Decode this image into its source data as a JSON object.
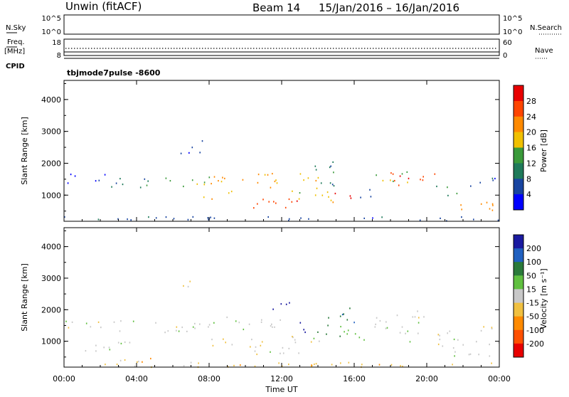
{
  "header": {
    "station": "Unwin (fitACF)",
    "beam": "Beam 14",
    "dates": "15/Jan/2016 – 16/Jan/2016"
  },
  "top_panels": {
    "nsky_label": "N.Sky",
    "nsky_ticks": [
      "10^5",
      "10^0"
    ],
    "nsky_right_ticks": [
      "10^5",
      "10^0"
    ],
    "nsearch_label": "N.Search",
    "freq_label_line1": "Freq.",
    "freq_label_line2": "[MHz]",
    "freq_ticks": [
      "18",
      "8"
    ],
    "nave_ticks": [
      "60",
      "0"
    ],
    "nave_label": "Nave",
    "cpid_label": "CPID",
    "cpid_value": "tbjmode7pulse -8600"
  },
  "chart_data": [
    {
      "type": "heatmap",
      "name": "power",
      "title": "",
      "xlabel": "Time UT",
      "ylabel": "Slant Range [km]",
      "xlim": [
        0,
        24
      ],
      "ylim": [
        180,
        4600
      ],
      "x_ticks": [
        "00:00",
        "04:00",
        "08:00",
        "12:00",
        "16:00",
        "20:00",
        "00:00"
      ],
      "y_ticks": [
        "1000",
        "2000",
        "3000",
        "4000"
      ],
      "colorbar_label": "Power [dB]",
      "colorbar_ticks": [
        "28",
        "24",
        "20",
        "16",
        "12",
        "8",
        "4"
      ],
      "colorbar_colors": [
        "#e80000",
        "#ff4500",
        "#ff8a00",
        "#f0c000",
        "#3a9a3a",
        "#1f7a5a",
        "#1844a0",
        "#0000ff"
      ],
      "bands": [
        {
          "t0": 0.0,
          "t1": 24.0,
          "r0": 200,
          "r1": 350,
          "level": 6
        },
        {
          "t0": 0.0,
          "t1": 2.5,
          "r0": 1400,
          "r1": 1700,
          "level": 7
        },
        {
          "t0": 2.5,
          "t1": 5.5,
          "r0": 1250,
          "r1": 1550,
          "level": 5
        },
        {
          "t0": 5.5,
          "t1": 8.0,
          "r0": 1200,
          "r1": 1600,
          "level": 4
        },
        {
          "t0": 8.0,
          "t1": 11.5,
          "r0": 1250,
          "r1": 1700,
          "level": 2
        },
        {
          "t0": 11.5,
          "t1": 14.0,
          "r0": 1400,
          "r1": 1800,
          "level": 3
        },
        {
          "t0": 6.2,
          "t1": 7.5,
          "r0": 2300,
          "r1": 2700,
          "level": 6
        },
        {
          "t0": 7.0,
          "t1": 7.6,
          "r0": 2700,
          "r1": 3000,
          "level": 6
        },
        {
          "t0": 7.5,
          "t1": 9.5,
          "r0": 900,
          "r1": 1150,
          "level": 3
        },
        {
          "t0": 9.0,
          "t1": 13.0,
          "r0": 600,
          "r1": 900,
          "level": 1
        },
        {
          "t0": 12.5,
          "t1": 15.0,
          "r0": 800,
          "r1": 1300,
          "level": 3
        },
        {
          "t0": 13.8,
          "t1": 15.2,
          "r0": 1200,
          "r1": 2100,
          "level": 5
        },
        {
          "t0": 14.8,
          "t1": 16.0,
          "r0": 800,
          "r1": 1100,
          "level": 0
        },
        {
          "t0": 16.2,
          "t1": 17.0,
          "r0": 900,
          "r1": 1300,
          "level": 6
        },
        {
          "t0": 17.0,
          "t1": 19.0,
          "r0": 1400,
          "r1": 1800,
          "level": 4
        },
        {
          "t0": 18.0,
          "t1": 20.5,
          "r0": 1300,
          "r1": 1800,
          "level": 1
        },
        {
          "t0": 20.5,
          "t1": 22.0,
          "r0": 1000,
          "r1": 1300,
          "level": 4
        },
        {
          "t0": 21.0,
          "t1": 24.0,
          "r0": 500,
          "r1": 800,
          "level": 2
        },
        {
          "t0": 22.0,
          "t1": 24.0,
          "r0": 1300,
          "r1": 1600,
          "level": 6
        }
      ]
    },
    {
      "type": "heatmap",
      "name": "velocity",
      "title": "",
      "xlabel": "Time UT",
      "ylabel": "Slant Range [km]",
      "xlim": [
        0,
        24
      ],
      "ylim": [
        180,
        4600
      ],
      "x_ticks": [
        "00:00",
        "04:00",
        "08:00",
        "12:00",
        "16:00",
        "20:00",
        "00:00"
      ],
      "y_ticks": [
        "1000",
        "2000",
        "3000",
        "4000"
      ],
      "colorbar_label": "Velocity [m s⁻¹]",
      "colorbar_ticks": [
        "200",
        "100",
        "50",
        "15",
        "-15",
        "-50",
        "-100",
        "-200"
      ],
      "colorbar_colors": [
        "#1a1aa0",
        "#2060c0",
        "#2a7a3a",
        "#60c040",
        "#c8c8c8",
        "#f0c040",
        "#ff8a00",
        "#ff5000",
        "#e80000"
      ],
      "bands": [
        {
          "t0": 0.0,
          "t1": 24.0,
          "r0": 200,
          "r1": 350,
          "level": 5
        },
        {
          "t0": 0.0,
          "t1": 4.0,
          "r0": 700,
          "r1": 1000,
          "level": 4
        },
        {
          "t0": 0.0,
          "t1": 3.0,
          "r0": 1400,
          "r1": 1700,
          "level": 4
        },
        {
          "t0": 3.0,
          "t1": 8.0,
          "r0": 1300,
          "r1": 1700,
          "level": 4
        },
        {
          "t0": 8.0,
          "t1": 12.0,
          "r0": 1400,
          "r1": 1800,
          "level": 4
        },
        {
          "t0": 2.0,
          "t1": 5.0,
          "r0": 200,
          "r1": 500,
          "level": 5
        },
        {
          "t0": 6.5,
          "t1": 7.5,
          "r0": 2600,
          "r1": 3000,
          "level": 5
        },
        {
          "t0": 8.0,
          "t1": 12.0,
          "r0": 800,
          "r1": 1100,
          "level": 5
        },
        {
          "t0": 10.0,
          "t1": 13.0,
          "r0": 600,
          "r1": 900,
          "level": 4
        },
        {
          "t0": 11.5,
          "t1": 12.6,
          "r0": 1900,
          "r1": 2300,
          "level": 0
        },
        {
          "t0": 13.0,
          "t1": 13.5,
          "r0": 1300,
          "r1": 1900,
          "level": 0
        },
        {
          "t0": 13.5,
          "t1": 16.0,
          "r0": 1100,
          "r1": 1500,
          "level": 3
        },
        {
          "t0": 14.5,
          "t1": 16.0,
          "r0": 1500,
          "r1": 2100,
          "level": 2
        },
        {
          "t0": 12.5,
          "t1": 15.0,
          "r0": 900,
          "r1": 1200,
          "level": 4
        },
        {
          "t0": 16.0,
          "t1": 17.0,
          "r0": 900,
          "r1": 1300,
          "level": 3
        },
        {
          "t0": 17.0,
          "t1": 20.0,
          "r0": 1400,
          "r1": 2000,
          "level": 4
        },
        {
          "t0": 18.5,
          "t1": 21.5,
          "r0": 1000,
          "r1": 1400,
          "level": 4
        },
        {
          "t0": 20.5,
          "t1": 24.0,
          "r0": 800,
          "r1": 1100,
          "level": 4
        },
        {
          "t0": 21.5,
          "t1": 24.0,
          "r0": 400,
          "r1": 700,
          "level": 4
        },
        {
          "t0": 22.5,
          "t1": 24.0,
          "r0": 1200,
          "r1": 1500,
          "level": 4
        }
      ]
    }
  ]
}
